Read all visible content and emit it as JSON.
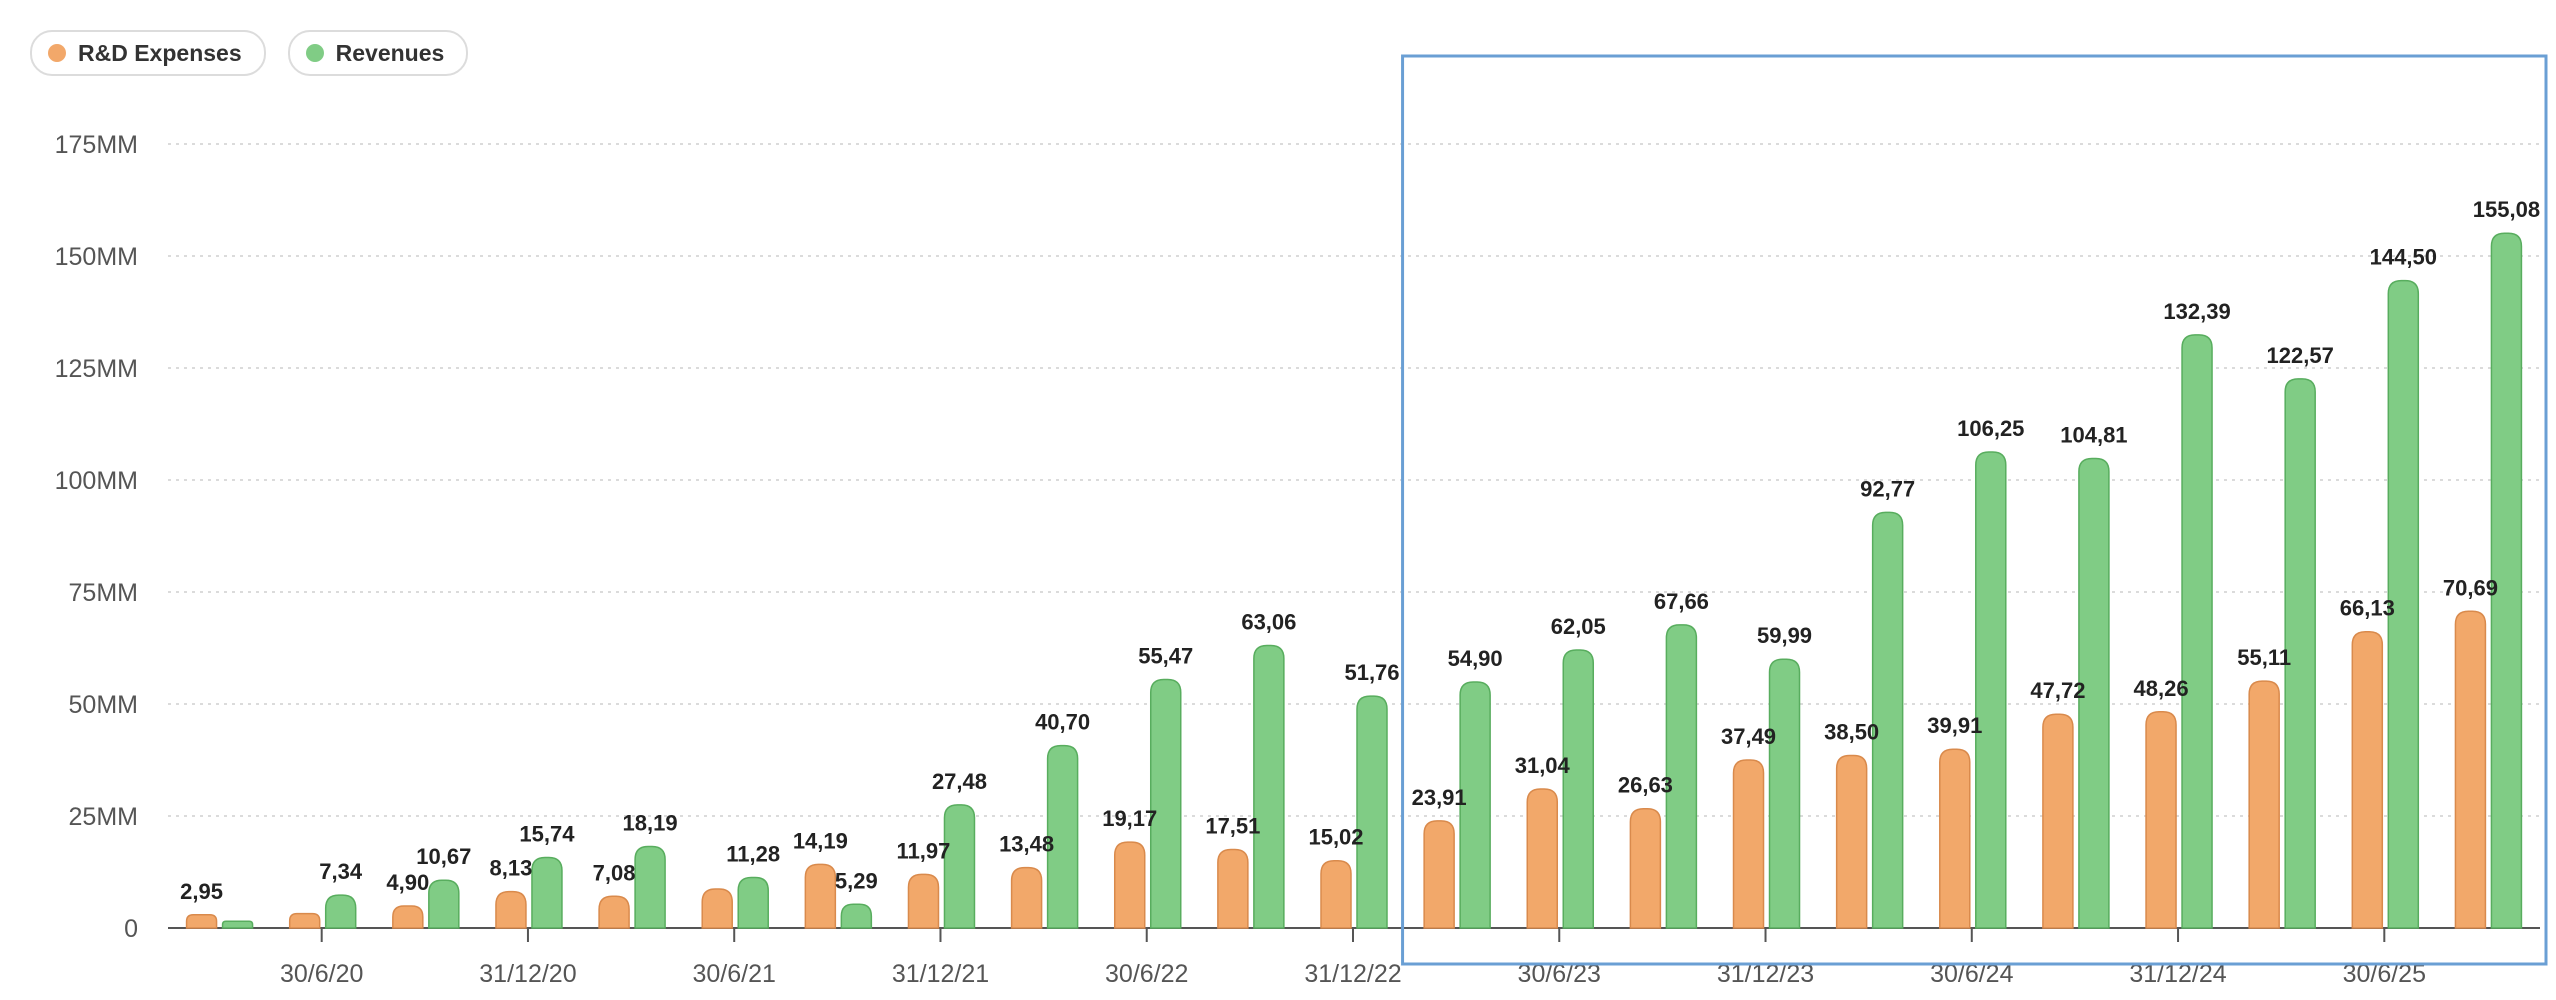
{
  "chart_data": {
    "type": "bar",
    "title": "",
    "xlabel": "",
    "ylabel": "",
    "ylim": [
      0,
      175
    ],
    "yticks": [
      {
        "value": 0,
        "label": "0"
      },
      {
        "value": 25,
        "label": "25MM"
      },
      {
        "value": 50,
        "label": "50MM"
      },
      {
        "value": 75,
        "label": "75MM"
      },
      {
        "value": 100,
        "label": "100MM"
      },
      {
        "value": 125,
        "label": "125MM"
      },
      {
        "value": 150,
        "label": "150MM"
      },
      {
        "value": 175,
        "label": "175MM"
      }
    ],
    "xtick_labels": [
      {
        "index": 1,
        "label": "30/6/20"
      },
      {
        "index": 3,
        "label": "31/12/20"
      },
      {
        "index": 5,
        "label": "30/6/21"
      },
      {
        "index": 7,
        "label": "31/12/21"
      },
      {
        "index": 9,
        "label": "30/6/22"
      },
      {
        "index": 11,
        "label": "31/12/22"
      },
      {
        "index": 13,
        "label": "30/6/23"
      },
      {
        "index": 15,
        "label": "31/12/23"
      },
      {
        "index": 17,
        "label": "30/6/24"
      },
      {
        "index": 19,
        "label": "31/12/24"
      },
      {
        "index": 21,
        "label": "30/6/25"
      }
    ],
    "grid": true,
    "legend_position": "top-left",
    "series": [
      {
        "name": "R&D Expenses",
        "color": "#f2a86a",
        "stroke": "#d98a4c",
        "values": [
          2.95,
          3.2,
          4.9,
          8.13,
          7.08,
          8.7,
          14.19,
          11.97,
          13.48,
          19.17,
          17.51,
          15.02,
          23.91,
          31.04,
          26.63,
          37.49,
          38.5,
          39.91,
          47.72,
          48.26,
          55.11,
          66.13,
          70.69
        ],
        "labels": [
          "2,95",
          "",
          "4,90",
          "8,13",
          "7,08",
          "",
          "14,19",
          "11,97",
          "13,48",
          "19,17",
          "17,51",
          "15,02",
          "23,91",
          "31,04",
          "26,63",
          "37,49",
          "38,50",
          "39,91",
          "47,72",
          "48,26",
          "55,11",
          "66,13",
          "70,69"
        ]
      },
      {
        "name": "Revenues",
        "color": "#80cc85",
        "stroke": "#58ad5e",
        "values": [
          1.5,
          7.34,
          10.67,
          15.74,
          18.19,
          11.28,
          5.29,
          27.48,
          40.7,
          55.47,
          63.06,
          51.76,
          54.9,
          62.05,
          67.66,
          59.99,
          92.77,
          106.25,
          104.81,
          132.39,
          122.57,
          144.5,
          155.08
        ],
        "labels": [
          "",
          "7,34",
          "10,67",
          "15,74",
          "18,19",
          "11,28",
          "5,29",
          "27,48",
          "40,70",
          "55,47",
          "63,06",
          "51,76",
          "54,90",
          "62,05",
          "67,66",
          "59,99",
          "92,77",
          "106,25",
          "104,81",
          "132,39",
          "122,57",
          "144,50",
          "155,08"
        ]
      }
    ],
    "highlight": {
      "from_index": 11.5,
      "to_index": 22.5,
      "color": "#6a9fd4"
    }
  }
}
